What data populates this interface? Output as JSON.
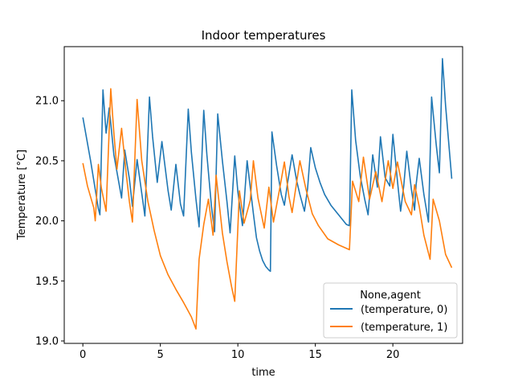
{
  "chart_data": {
    "type": "line",
    "title": "Indoor temperatures",
    "xlabel": "time",
    "ylabel": "Temperature [°C]",
    "xlim": [
      -1.2,
      24.5
    ],
    "ylim": [
      18.98,
      21.45
    ],
    "xticks": [
      0,
      5,
      10,
      15,
      20
    ],
    "yticks": [
      19.0,
      19.5,
      20.0,
      20.5,
      21.0
    ],
    "ytick_labels": [
      "19.0",
      "19.5",
      "20.0",
      "20.5",
      "21.0"
    ],
    "grid": false,
    "legend": {
      "title": "None,agent",
      "position": "lower-right"
    },
    "series": [
      {
        "name": "(temperature, 0)",
        "color": "#1f77b4",
        "points": [
          [
            0,
            20.86
          ],
          [
            0.5,
            20.5
          ],
          [
            1.0,
            20.1
          ],
          [
            1.1,
            20.05
          ],
          [
            1.3,
            21.09
          ],
          [
            1.5,
            20.73
          ],
          [
            1.7,
            20.94
          ],
          [
            2.0,
            20.55
          ],
          [
            2.5,
            20.19
          ],
          [
            2.7,
            20.59
          ],
          [
            3.0,
            20.35
          ],
          [
            3.2,
            20.12
          ],
          [
            3.5,
            20.51
          ],
          [
            4.0,
            20.04
          ],
          [
            4.3,
            21.03
          ],
          [
            4.5,
            20.7
          ],
          [
            4.8,
            20.32
          ],
          [
            5.1,
            20.66
          ],
          [
            5.5,
            20.25
          ],
          [
            5.7,
            20.09
          ],
          [
            6.0,
            20.47
          ],
          [
            6.3,
            20.14
          ],
          [
            6.5,
            20.04
          ],
          [
            6.8,
            20.93
          ],
          [
            7.0,
            20.57
          ],
          [
            7.3,
            20.18
          ],
          [
            7.5,
            19.95
          ],
          [
            7.8,
            20.92
          ],
          [
            8.0,
            20.55
          ],
          [
            8.3,
            20.12
          ],
          [
            8.5,
            19.91
          ],
          [
            8.7,
            20.89
          ],
          [
            9.0,
            20.5
          ],
          [
            9.3,
            20.16
          ],
          [
            9.5,
            19.9
          ],
          [
            9.8,
            20.54
          ],
          [
            10.0,
            20.24
          ],
          [
            10.3,
            19.96
          ],
          [
            10.6,
            20.5
          ],
          [
            10.8,
            20.28
          ],
          [
            11.0,
            20.06
          ],
          [
            11.2,
            19.86
          ],
          [
            11.4,
            19.75
          ],
          [
            11.6,
            19.67
          ],
          [
            11.8,
            19.62
          ],
          [
            12.0,
            19.59
          ],
          [
            12.1,
            19.58
          ],
          [
            12.2,
            20.74
          ],
          [
            12.5,
            20.46
          ],
          [
            12.8,
            20.22
          ],
          [
            13.0,
            20.13
          ],
          [
            13.2,
            20.31
          ],
          [
            13.5,
            20.55
          ],
          [
            13.8,
            20.33
          ],
          [
            14.0,
            20.22
          ],
          [
            14.3,
            20.08
          ],
          [
            14.5,
            20.27
          ],
          [
            14.7,
            20.61
          ],
          [
            15.0,
            20.44
          ],
          [
            15.3,
            20.32
          ],
          [
            15.6,
            20.22
          ],
          [
            16.0,
            20.13
          ],
          [
            16.5,
            20.05
          ],
          [
            17.0,
            19.97
          ],
          [
            17.2,
            19.96
          ],
          [
            17.35,
            21.09
          ],
          [
            17.6,
            20.67
          ],
          [
            17.9,
            20.37
          ],
          [
            18.2,
            20.17
          ],
          [
            18.4,
            20.05
          ],
          [
            18.7,
            20.55
          ],
          [
            19.0,
            20.28
          ],
          [
            19.2,
            20.7
          ],
          [
            19.5,
            20.36
          ],
          [
            19.8,
            20.29
          ],
          [
            20.0,
            20.72
          ],
          [
            20.3,
            20.33
          ],
          [
            20.5,
            20.08
          ],
          [
            20.7,
            20.29
          ],
          [
            20.9,
            20.58
          ],
          [
            21.2,
            20.26
          ],
          [
            21.4,
            20.09
          ],
          [
            21.5,
            20.3
          ],
          [
            21.7,
            20.52
          ],
          [
            22.0,
            20.22
          ],
          [
            22.3,
            19.99
          ],
          [
            22.5,
            21.03
          ],
          [
            22.8,
            20.63
          ],
          [
            23.0,
            20.4
          ],
          [
            23.2,
            21.35
          ],
          [
            23.4,
            20.96
          ],
          [
            23.8,
            20.35
          ]
        ]
      },
      {
        "name": "(temperature, 1)",
        "color": "#ff7f0e",
        "points": [
          [
            0,
            20.48
          ],
          [
            0.3,
            20.29
          ],
          [
            0.7,
            20.11
          ],
          [
            0.8,
            20.0
          ],
          [
            1.0,
            20.47
          ],
          [
            1.2,
            20.27
          ],
          [
            1.5,
            20.08
          ],
          [
            1.8,
            21.1
          ],
          [
            2.0,
            20.73
          ],
          [
            2.2,
            20.43
          ],
          [
            2.5,
            20.77
          ],
          [
            2.8,
            20.39
          ],
          [
            3.0,
            20.16
          ],
          [
            3.2,
            19.99
          ],
          [
            3.5,
            21.01
          ],
          [
            3.8,
            20.5
          ],
          [
            4.2,
            20.16
          ],
          [
            4.6,
            19.92
          ],
          [
            5.0,
            19.71
          ],
          [
            5.5,
            19.55
          ],
          [
            6.0,
            19.43
          ],
          [
            6.5,
            19.32
          ],
          [
            7.0,
            19.2
          ],
          [
            7.3,
            19.1
          ],
          [
            7.5,
            19.68
          ],
          [
            7.8,
            19.97
          ],
          [
            8.1,
            20.18
          ],
          [
            8.4,
            19.88
          ],
          [
            8.6,
            20.38
          ],
          [
            9.0,
            19.9
          ],
          [
            9.3,
            19.66
          ],
          [
            9.6,
            19.45
          ],
          [
            9.8,
            19.33
          ],
          [
            10.1,
            20.25
          ],
          [
            10.4,
            19.98
          ],
          [
            10.8,
            20.17
          ],
          [
            11.0,
            20.5
          ],
          [
            11.3,
            20.19
          ],
          [
            11.7,
            19.94
          ],
          [
            12.0,
            20.28
          ],
          [
            12.3,
            19.99
          ],
          [
            12.7,
            20.27
          ],
          [
            13.0,
            20.49
          ],
          [
            13.3,
            20.2
          ],
          [
            13.5,
            20.07
          ],
          [
            14.0,
            20.5
          ],
          [
            14.4,
            20.26
          ],
          [
            14.8,
            20.06
          ],
          [
            15.2,
            19.96
          ],
          [
            15.8,
            19.85
          ],
          [
            16.5,
            19.8
          ],
          [
            17.2,
            19.76
          ],
          [
            17.4,
            20.33
          ],
          [
            17.8,
            20.16
          ],
          [
            18.1,
            20.53
          ],
          [
            18.5,
            20.18
          ],
          [
            18.9,
            20.41
          ],
          [
            19.3,
            20.16
          ],
          [
            19.7,
            20.5
          ],
          [
            20.0,
            20.27
          ],
          [
            20.3,
            20.49
          ],
          [
            20.8,
            20.16
          ],
          [
            21.2,
            20.05
          ],
          [
            21.4,
            20.3
          ],
          [
            21.7,
            20.12
          ],
          [
            22.0,
            19.88
          ],
          [
            22.4,
            19.68
          ],
          [
            22.6,
            20.18
          ],
          [
            23.0,
            20.0
          ],
          [
            23.4,
            19.72
          ],
          [
            23.8,
            19.61
          ]
        ]
      }
    ]
  }
}
